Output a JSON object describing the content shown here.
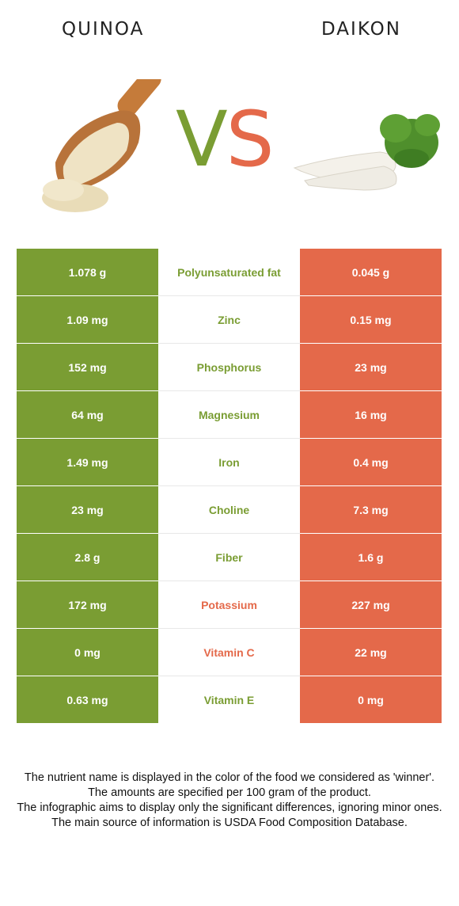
{
  "header": {
    "left_food": "QUINOA",
    "right_food": "DAIKON"
  },
  "vs": {
    "v": "V",
    "s": "S"
  },
  "colors": {
    "quinoa": "#7a9d33",
    "daikon": "#e4694a"
  },
  "rows": [
    {
      "nutrient": "Polyunsaturated fat",
      "quinoa": "1.078 g",
      "daikon": "0.045 g",
      "winner": "quinoa"
    },
    {
      "nutrient": "Zinc",
      "quinoa": "1.09 mg",
      "daikon": "0.15 mg",
      "winner": "quinoa"
    },
    {
      "nutrient": "Phosphorus",
      "quinoa": "152 mg",
      "daikon": "23 mg",
      "winner": "quinoa"
    },
    {
      "nutrient": "Magnesium",
      "quinoa": "64 mg",
      "daikon": "16 mg",
      "winner": "quinoa"
    },
    {
      "nutrient": "Iron",
      "quinoa": "1.49 mg",
      "daikon": "0.4 mg",
      "winner": "quinoa"
    },
    {
      "nutrient": "Choline",
      "quinoa": "23 mg",
      "daikon": "7.3 mg",
      "winner": "quinoa"
    },
    {
      "nutrient": "Fiber",
      "quinoa": "2.8 g",
      "daikon": "1.6 g",
      "winner": "quinoa"
    },
    {
      "nutrient": "Potassium",
      "quinoa": "172 mg",
      "daikon": "227 mg",
      "winner": "daikon"
    },
    {
      "nutrient": "Vitamin C",
      "quinoa": "0 mg",
      "daikon": "22 mg",
      "winner": "daikon"
    },
    {
      "nutrient": "Vitamin E",
      "quinoa": "0.63 mg",
      "daikon": "0 mg",
      "winner": "quinoa"
    }
  ],
  "footer": [
    "The nutrient name is displayed in the color of the food we considered as 'winner'.",
    "The amounts are specified per 100 gram of the product.",
    "The infographic aims to display only the significant differences, ignoring minor ones.",
    "The main source of information is USDA Food Composition Database."
  ]
}
